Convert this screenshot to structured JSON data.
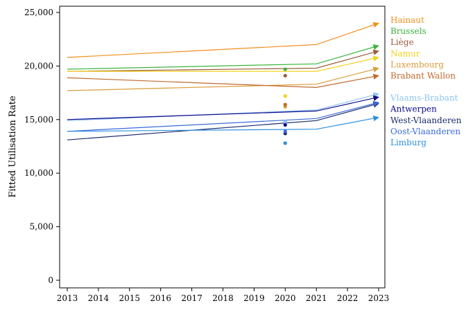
{
  "chart_data": {
    "type": "line",
    "ylabel": "Fitted Utilisation Rate",
    "xlabel": "",
    "title": "",
    "x_ticks": [
      2013,
      2014,
      2015,
      2016,
      2017,
      2018,
      2019,
      2020,
      2021,
      2022,
      2023
    ],
    "x_range": [
      2013,
      2023
    ],
    "y_ticks": [
      0,
      5000,
      10000,
      15000,
      20000,
      25000
    ],
    "y_tick_labels": [
      "0",
      "5,000",
      "10,000",
      "15,000",
      "20,000",
      "25,000"
    ],
    "ylim": [
      0,
      25000
    ],
    "grid": false,
    "legend_placement": "right",
    "series": [
      {
        "name": "Hainaut",
        "color": "#f28e1c",
        "x": [
          2013,
          2021,
          2023
        ],
        "values": [
          20800,
          22000,
          24000
        ],
        "dot_2020": null
      },
      {
        "name": "Brussels",
        "color": "#3bb33b",
        "x": [
          2013,
          2021,
          2023
        ],
        "values": [
          19700,
          20200,
          21900
        ],
        "dot_2020": 19700
      },
      {
        "name": "Liège",
        "color": "#9c5b3a",
        "x": [
          2013,
          2021,
          2023
        ],
        "values": [
          19500,
          19800,
          21400
        ],
        "dot_2020": 19100
      },
      {
        "name": "Namur",
        "color": "#f2d21c",
        "x": [
          2013,
          2021,
          2023
        ],
        "values": [
          19500,
          19500,
          20800
        ],
        "dot_2020": 17200
      },
      {
        "name": "Luxembourg",
        "color": "#d99a38",
        "x": [
          2013,
          2021,
          2023
        ],
        "values": [
          17700,
          18300,
          19800
        ],
        "dot_2020": 16200
      },
      {
        "name": "Brabant Wallon",
        "color": "#c0692e",
        "x": [
          2013,
          2021,
          2023
        ],
        "values": [
          18900,
          18000,
          19100
        ],
        "dot_2020": 16400
      },
      {
        "name": "Vlaams-Brabant",
        "color": "#8ec4f0",
        "x": [
          2013,
          2021,
          2023
        ],
        "values": [
          14900,
          15900,
          17400
        ],
        "dot_2020": 14800
      },
      {
        "name": "Antwerpen",
        "color": "#0a0a8c",
        "x": [
          2013,
          2021,
          2023
        ],
        "values": [
          15000,
          15800,
          17100
        ],
        "dot_2020": 14500
      },
      {
        "name": "West-Vlaanderen",
        "color": "#1a2a6e",
        "x": [
          2013,
          2021,
          2023
        ],
        "values": [
          13100,
          14900,
          16500
        ],
        "dot_2020": 13700
      },
      {
        "name": "Oost-Vlaanderen",
        "color": "#3a6ad9",
        "x": [
          2013,
          2021,
          2023
        ],
        "values": [
          13900,
          15100,
          16600
        ],
        "dot_2020": 13900
      },
      {
        "name": "Limburg",
        "color": "#2a8fe0",
        "x": [
          2013,
          2021,
          2023
        ],
        "values": [
          13900,
          14100,
          15200
        ],
        "dot_2020": 12800
      }
    ]
  }
}
